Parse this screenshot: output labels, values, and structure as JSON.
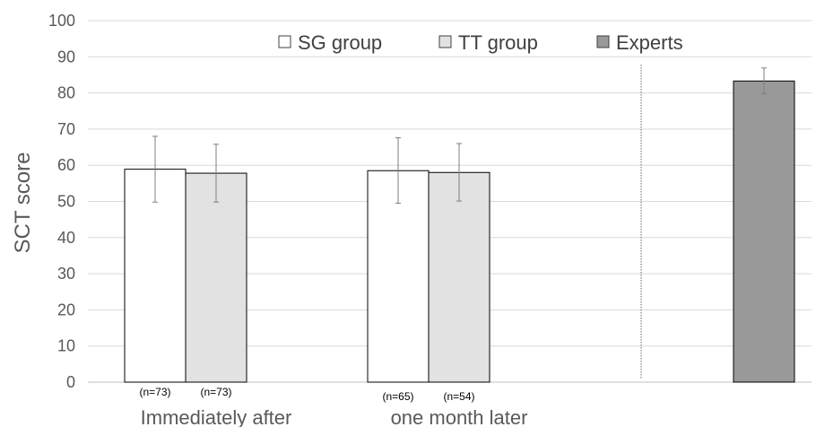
{
  "chart_data": {
    "type": "bar",
    "ylabel": "SCT score",
    "ylim": [
      0,
      100
    ],
    "yticks": [
      0,
      10,
      20,
      30,
      40,
      50,
      60,
      70,
      80,
      90,
      100
    ],
    "grid": true,
    "legend_position": "top",
    "categories": [
      "Immediately after",
      "one month later",
      ""
    ],
    "series": [
      {
        "name": "SG group",
        "color": "#ffffff",
        "values": [
          58.9,
          58.5,
          null
        ],
        "error_low": [
          49.8,
          49.5,
          null
        ],
        "error_high": [
          68.0,
          67.6,
          null
        ],
        "n_labels": [
          "(n=73)",
          "(n=65)",
          ""
        ]
      },
      {
        "name": "TT group",
        "color": "#e2e2e2",
        "values": [
          57.8,
          58.0,
          null
        ],
        "error_low": [
          49.8,
          50.1,
          null
        ],
        "error_high": [
          65.8,
          66.0,
          null
        ],
        "n_labels": [
          "(n=73)",
          "(n=54)",
          ""
        ]
      },
      {
        "name": "Experts",
        "color": "#999999",
        "values": [
          null,
          null,
          83.3
        ],
        "error_low": [
          null,
          null,
          79.8
        ],
        "error_high": [
          null,
          null,
          86.9
        ],
        "n_labels": [
          "",
          "",
          ""
        ]
      }
    ],
    "separator": {
      "type": "dotted-vertical-line",
      "between": "group 2 and group 3"
    }
  }
}
